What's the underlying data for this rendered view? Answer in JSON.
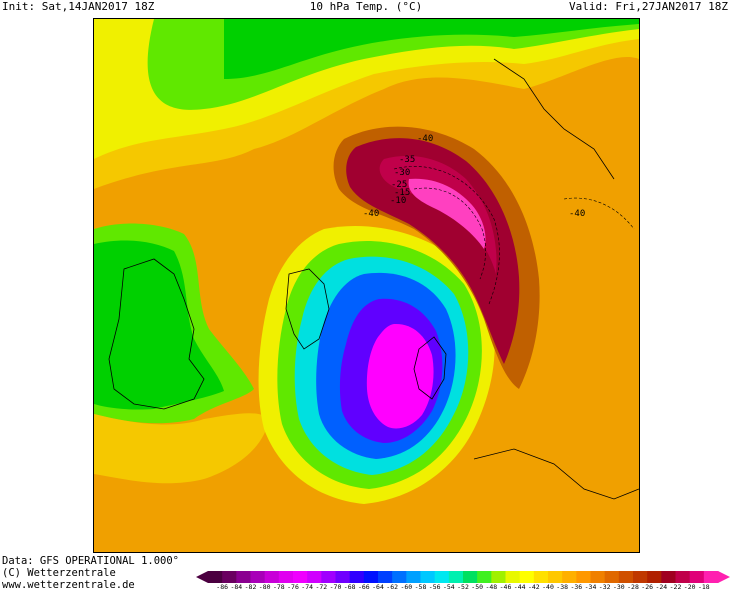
{
  "header": {
    "init": "Init: Sat,14JAN2017  18Z",
    "title": "10 hPa Temp. (°C)",
    "valid": "Valid: Fri,27JAN2017  18Z"
  },
  "footer": {
    "data_line": "Data: GFS OPERATIONAL 1.000°",
    "copyright": "(C) Wetterzentrale",
    "url": "www.wetterzentrale.de"
  },
  "contour_labels": [
    "-40",
    "-35",
    "-30",
    "-25",
    "-15",
    "-10",
    "-40",
    "-40"
  ],
  "legend": {
    "ticks": [
      "-86",
      "-84",
      "-82",
      "-80",
      "-78",
      "-76",
      "-74",
      "-72",
      "-70",
      "-68",
      "-66",
      "-64",
      "-62",
      "-60",
      "-58",
      "-56",
      "-54",
      "-52",
      "-50",
      "-48",
      "-46",
      "-44",
      "-42",
      "-40",
      "-38",
      "-36",
      "-34",
      "-32",
      "-30",
      "-28",
      "-26",
      "-24",
      "-22",
      "-20",
      "-18"
    ],
    "colors": [
      "#4b0040",
      "#6a0060",
      "#8a0090",
      "#a800b8",
      "#c800d8",
      "#e000f0",
      "#f000ff",
      "#d000ff",
      "#a000ff",
      "#7000ff",
      "#3000ff",
      "#0010ff",
      "#0040ff",
      "#0070ff",
      "#00a0ff",
      "#00c8ff",
      "#00e8f0",
      "#00f0b0",
      "#00e060",
      "#40f020",
      "#a0f000",
      "#e8f800",
      "#ffff00",
      "#ffe000",
      "#ffc800",
      "#ffb000",
      "#ff9800",
      "#f08000",
      "#e06800",
      "#d05000",
      "#c03800",
      "#b02000",
      "#a00020",
      "#c0004a",
      "#e00078",
      "#ff20b0"
    ]
  },
  "colors": {
    "yellow": "#f0f000",
    "light_orange": "#f5c800",
    "orange": "#f0a000",
    "dark_orange": "#e07800",
    "brown": "#c06000",
    "dark_red": "#a00030",
    "crimson": "#c0004a",
    "pink": "#ff40c0",
    "green": "#00d000",
    "light_green": "#60e800",
    "cyan": "#00e0e0",
    "blue": "#0060ff",
    "violet": "#6000ff",
    "magenta": "#ff00ff"
  }
}
